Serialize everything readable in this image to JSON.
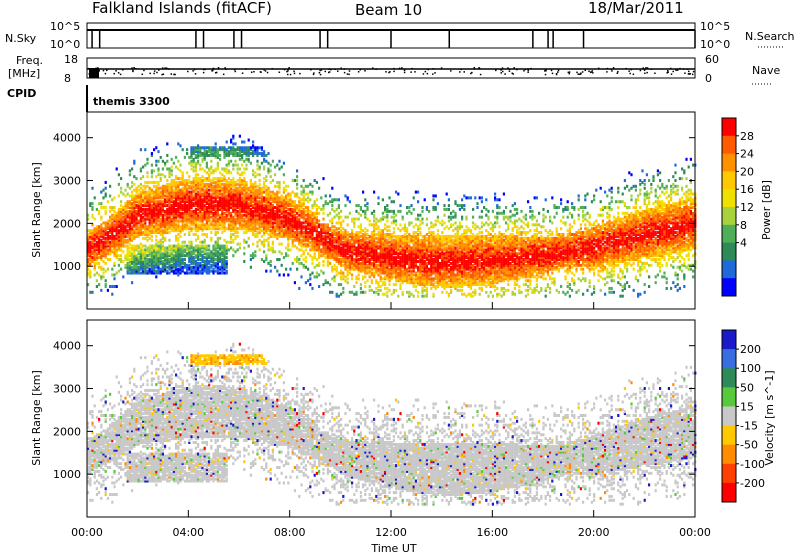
{
  "header": {
    "station": "Falkland Islands (fitACF)",
    "beam": "Beam 10",
    "date": "18/Mar/2011"
  },
  "top_panels": {
    "nsky_label": "N.Sky",
    "nsky_ticks": [
      "10^5",
      "10^0"
    ],
    "nsearch_label": "N.Search",
    "nsearch_ticks": [
      "10^5",
      "10^0"
    ],
    "freq_label_1": "Freq.",
    "freq_label_2": "[MHz]",
    "freq_ticks": [
      "18",
      "8"
    ],
    "nave_label": "Nave",
    "nave_ticks": [
      "60",
      "0"
    ],
    "cpid_label": "CPID",
    "cpid_value": "themis 3300"
  },
  "chart_data": [
    {
      "type": "heatmap",
      "title": "",
      "ylabel": "Slant Range [km]",
      "xlabel": "",
      "ylim": [
        0,
        4600
      ],
      "yticks": [
        1000,
        2000,
        3000,
        4000
      ],
      "colorbar_label": "Power [dB]",
      "colorbar_ticks": [
        "28",
        "24",
        "20",
        "16",
        "12",
        "8",
        "4"
      ],
      "colorbar_colors": [
        "#ff0000",
        "#ff5a00",
        "#ff9000",
        "#ffc800",
        "#f0e000",
        "#a8d23c",
        "#4fae5a",
        "#2e8b57",
        "#1e6ad8",
        "#0000ff"
      ],
      "echo_band_center_km": [
        {
          "hour": 0.0,
          "km": 1400
        },
        {
          "hour": 1.0,
          "km": 1750
        },
        {
          "hour": 2.0,
          "km": 2200
        },
        {
          "hour": 4.0,
          "km": 2450
        },
        {
          "hour": 6.0,
          "km": 2450
        },
        {
          "hour": 8.0,
          "km": 2100
        },
        {
          "hour": 10.0,
          "km": 1400
        },
        {
          "hour": 12.0,
          "km": 1200
        },
        {
          "hour": 14.0,
          "km": 1100
        },
        {
          "hour": 16.0,
          "km": 1150
        },
        {
          "hour": 18.0,
          "km": 1250
        },
        {
          "hour": 20.0,
          "km": 1450
        },
        {
          "hour": 22.0,
          "km": 1750
        },
        {
          "hour": 24.0,
          "km": 2000
        }
      ]
    },
    {
      "type": "heatmap",
      "title": "",
      "ylabel": "Slant Range [km]",
      "xlabel": "Time UT",
      "ylim": [
        0,
        4600
      ],
      "yticks": [
        1000,
        2000,
        3000,
        4000
      ],
      "colorbar_label": "Velocity [m s^-1]",
      "colorbar_ticks": [
        "200",
        "100",
        "50",
        "15",
        "-15",
        "-50",
        "-100",
        "-200"
      ],
      "colorbar_colors": [
        "#1a1ac8",
        "#3a6ee0",
        "#2e8b57",
        "#58c83c",
        "#c8c8c8",
        "#ffc800",
        "#ff8c00",
        "#ff4000",
        "#ff0000"
      ],
      "x": [
        "00:00",
        "04:00",
        "08:00",
        "12:00",
        "16:00",
        "20:00",
        "00:00"
      ]
    }
  ]
}
